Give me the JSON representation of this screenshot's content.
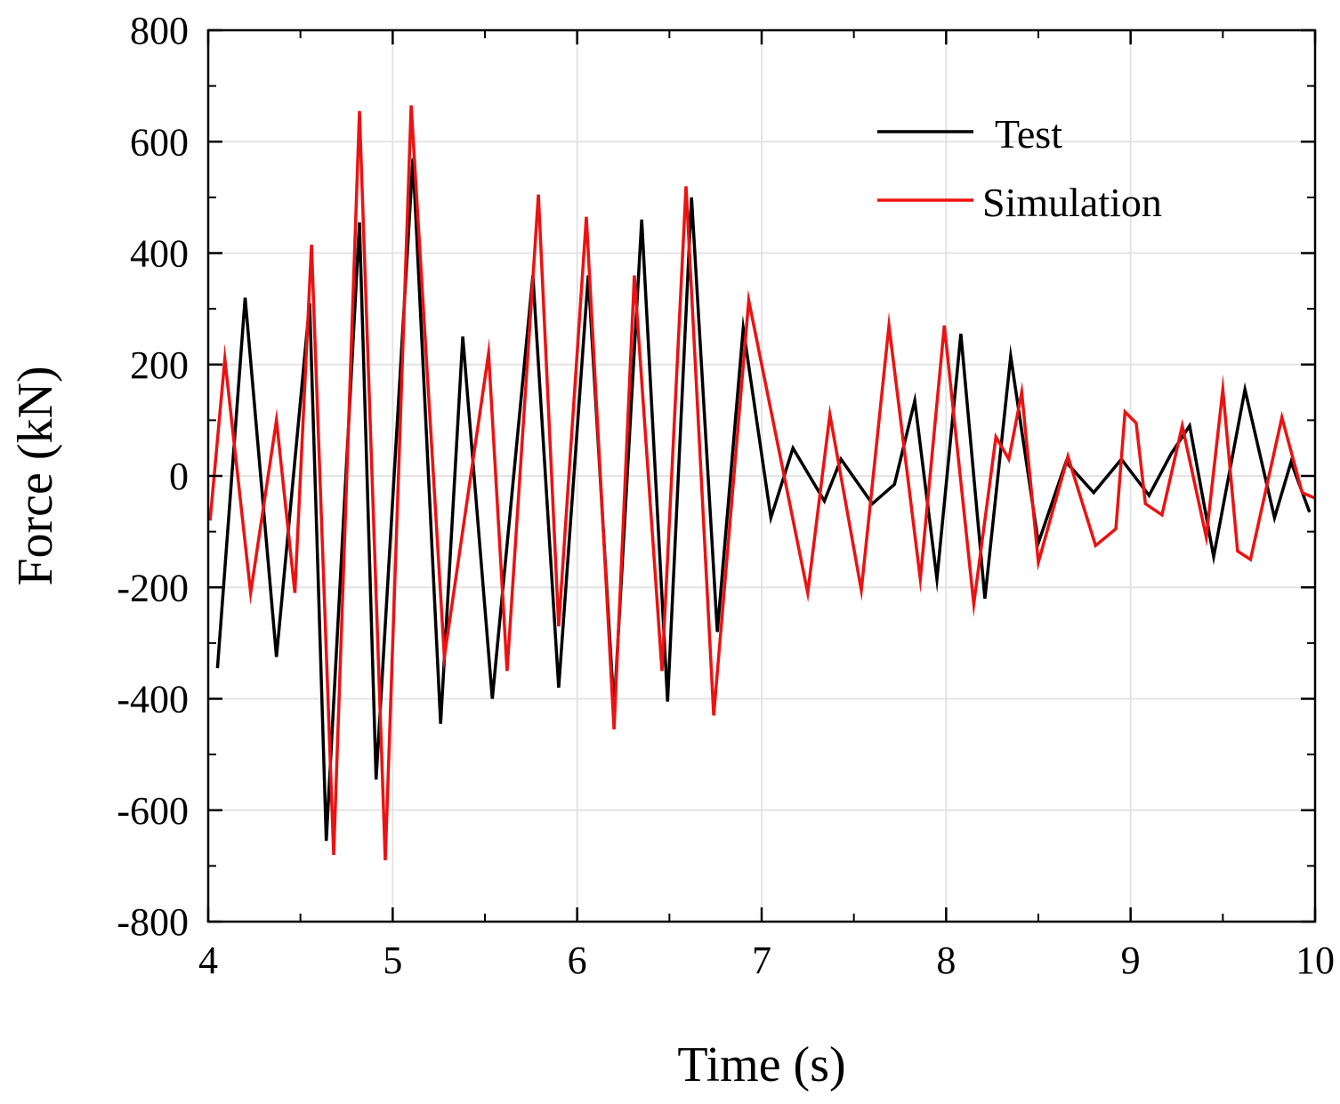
{
  "chart_data": {
    "type": "line",
    "title": "",
    "xlabel": "Time (s)",
    "ylabel": "Force (kN)",
    "xlim": [
      4,
      10
    ],
    "ylim": [
      -800,
      800
    ],
    "xticks": [
      4,
      5,
      6,
      7,
      8,
      9,
      10
    ],
    "xtick_labels": [
      "4",
      "5",
      "6",
      "7",
      "8",
      "9",
      "10"
    ],
    "yticks": [
      -800,
      -600,
      -400,
      -200,
      0,
      200,
      400,
      600,
      800
    ],
    "ytick_labels": [
      "-800",
      "-600",
      "-400",
      "-200",
      "0",
      "200",
      "400",
      "600",
      "800"
    ],
    "grid": true,
    "legend_position": "top-right",
    "series": [
      {
        "name": "Test",
        "color": "#000000",
        "x": [
          4.05,
          4.2,
          4.37,
          4.55,
          4.64,
          4.82,
          4.91,
          5.11,
          5.26,
          5.38,
          5.54,
          5.76,
          5.9,
          6.06,
          6.2,
          6.35,
          6.49,
          6.62,
          6.76,
          6.9,
          7.05,
          7.17,
          7.34,
          7.43,
          7.6,
          7.72,
          7.83,
          7.95,
          8.08,
          8.21,
          8.35,
          8.5,
          8.65,
          8.8,
          8.95,
          9.1,
          9.22,
          9.32,
          9.45,
          9.62,
          9.78,
          9.87,
          9.97
        ],
        "y": [
          -345,
          320,
          -325,
          310,
          -655,
          455,
          -545,
          570,
          -445,
          250,
          -400,
          360,
          -380,
          360,
          -420,
          460,
          -405,
          500,
          -280,
          265,
          -75,
          50,
          -45,
          30,
          -50,
          -15,
          135,
          -185,
          255,
          -220,
          215,
          -120,
          25,
          -30,
          30,
          -35,
          40,
          90,
          -145,
          155,
          -75,
          25,
          -65
        ]
      },
      {
        "name": "Simulation",
        "color": "#ee1111",
        "x": [
          4.01,
          4.09,
          4.23,
          4.37,
          4.47,
          4.56,
          4.68,
          4.82,
          4.96,
          5.1,
          5.28,
          5.52,
          5.62,
          5.79,
          5.9,
          6.05,
          6.2,
          6.31,
          6.46,
          6.59,
          6.74,
          6.93,
          7.25,
          7.37,
          7.54,
          7.69,
          7.86,
          7.99,
          8.15,
          8.27,
          8.34,
          8.41,
          8.5,
          8.66,
          8.81,
          8.92,
          8.97,
          9.03,
          9.08,
          9.17,
          9.28,
          9.41,
          9.5,
          9.58,
          9.65,
          9.82,
          9.93,
          10.0
        ],
        "y": [
          -80,
          210,
          -210,
          100,
          -210,
          415,
          -680,
          655,
          -690,
          665,
          -325,
          220,
          -350,
          505,
          -270,
          465,
          -455,
          360,
          -350,
          520,
          -430,
          315,
          -210,
          110,
          -205,
          270,
          -185,
          270,
          -230,
          70,
          30,
          150,
          -155,
          35,
          -125,
          -95,
          115,
          95,
          -50,
          -70,
          90,
          -110,
          155,
          -135,
          -150,
          105,
          -30,
          -40
        ]
      }
    ]
  }
}
